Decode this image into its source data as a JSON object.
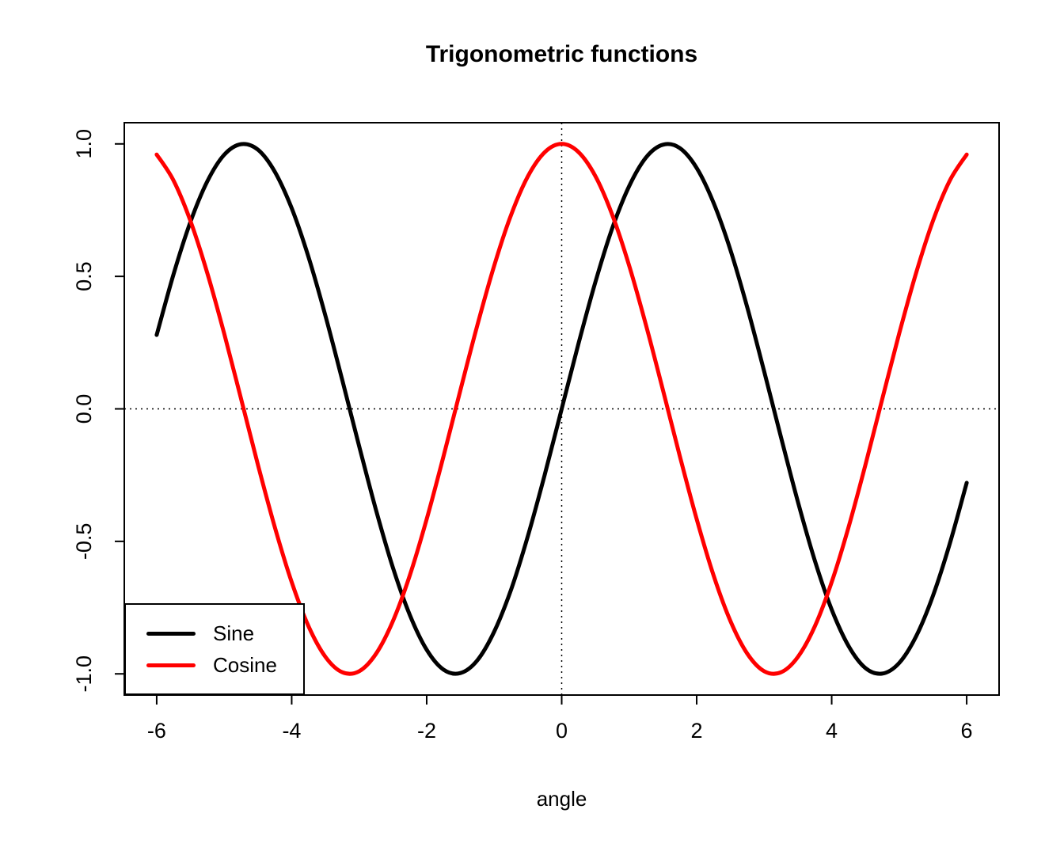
{
  "title": "Trigonometric functions",
  "colors": {
    "background": "#ffffff",
    "axis": "#000000",
    "sine": "#000000",
    "cosine": "#ff0000"
  },
  "chart_data": {
    "type": "line",
    "title": "Trigonometric functions",
    "xlabel": "angle",
    "ylabel": "",
    "grid": false,
    "xlim": [
      -6.48,
      6.48
    ],
    "ylim": [
      -1.08,
      1.08
    ],
    "x_ticks": [
      -6,
      -4,
      -2,
      0,
      2,
      4,
      6
    ],
    "x_tick_labels": [
      "-6",
      "-4",
      "-2",
      "0",
      "2",
      "4",
      "6"
    ],
    "y_ticks": [
      -1.0,
      -0.5,
      0.0,
      0.5,
      1.0
    ],
    "y_tick_labels": [
      "-1.0",
      "-0.5",
      "0.0",
      "0.5",
      "1.0"
    ],
    "reference_lines": {
      "vertical_x": 0,
      "horizontal_y": 0,
      "style": "dotted"
    },
    "x": [
      -6,
      -5.75,
      -5.5,
      -5.25,
      -5,
      -4.75,
      -4.5,
      -4.25,
      -4,
      -3.75,
      -3.5,
      -3.25,
      -3,
      -2.75,
      -2.5,
      -2.25,
      -2,
      -1.75,
      -1.5,
      -1.25,
      -1,
      -0.75,
      -0.5,
      -0.25,
      0,
      0.25,
      0.5,
      0.75,
      1,
      1.25,
      1.5,
      1.75,
      2,
      2.25,
      2.5,
      2.75,
      3,
      3.25,
      3.5,
      3.75,
      4,
      4.25,
      4.5,
      4.75,
      5,
      5.25,
      5.5,
      5.75,
      6
    ],
    "series": [
      {
        "name": "Sine",
        "color": "#000000",
        "values": [
          0.279,
          0.508,
          0.706,
          0.859,
          0.959,
          0.999,
          0.978,
          0.895,
          0.757,
          0.572,
          0.351,
          0.108,
          -0.141,
          -0.382,
          -0.599,
          -0.778,
          -0.909,
          -0.984,
          -0.997,
          -0.949,
          -0.841,
          -0.682,
          -0.479,
          -0.247,
          0,
          0.247,
          0.479,
          0.682,
          0.841,
          0.949,
          0.997,
          0.984,
          0.909,
          0.778,
          0.599,
          0.382,
          0.141,
          -0.108,
          -0.351,
          -0.572,
          -0.757,
          -0.895,
          -0.978,
          -0.999,
          -0.959,
          -0.859,
          -0.706,
          -0.508,
          -0.279
        ]
      },
      {
        "name": "Cosine",
        "color": "#ff0000",
        "values": [
          0.96,
          0.862,
          0.709,
          0.512,
          0.284,
          0.038,
          -0.211,
          -0.446,
          -0.654,
          -0.821,
          -0.936,
          -0.994,
          -0.99,
          -0.924,
          -0.801,
          -0.628,
          -0.416,
          -0.178,
          0.071,
          0.315,
          0.54,
          0.732,
          0.878,
          0.969,
          1,
          0.969,
          0.878,
          0.732,
          0.54,
          0.315,
          0.071,
          -0.178,
          -0.416,
          -0.628,
          -0.801,
          -0.924,
          -0.99,
          -0.994,
          -0.936,
          -0.821,
          -0.654,
          -0.446,
          -0.211,
          0.038,
          0.284,
          0.512,
          0.709,
          0.862,
          0.96
        ]
      }
    ],
    "legend": {
      "position": "bottom-left",
      "entries": [
        {
          "label": "Sine",
          "color": "#000000"
        },
        {
          "label": "Cosine",
          "color": "#ff0000"
        }
      ]
    }
  }
}
